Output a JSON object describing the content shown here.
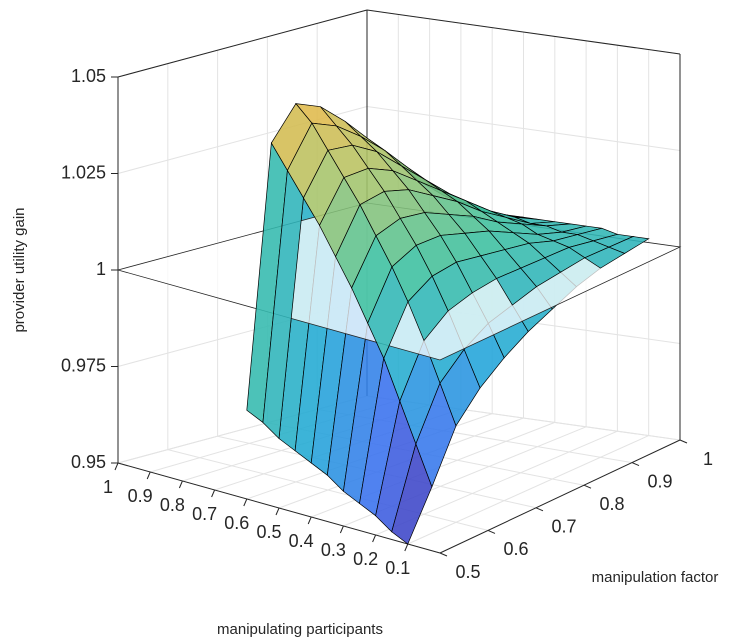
{
  "chart_data": {
    "type": "surface",
    "xlabel": "manipulating participants",
    "ylabel": "manipulation factor",
    "zlabel": "provider utility gain",
    "x": [
      0.1,
      0.15,
      0.2,
      0.25,
      0.3,
      0.35,
      0.4,
      0.45,
      0.5,
      0.55,
      0.6
    ],
    "y": [
      0.5,
      0.55,
      0.6,
      0.65,
      0.7,
      0.75,
      0.8,
      0.85,
      0.9,
      0.95,
      1
    ],
    "z": [
      [
        0.95,
        0.952,
        0.955,
        0.957,
        0.959,
        0.962,
        0.964,
        0.966,
        0.968,
        0.971,
        0.973
      ],
      [
        0.962,
        0.972,
        0.982,
        0.992,
        1.0,
        1.008,
        1.015,
        1.022,
        1.028,
        1.034,
        1.04
      ],
      [
        0.975,
        0.985,
        0.995,
        1.004,
        1.012,
        1.019,
        1.026,
        1.032,
        1.038,
        1.044,
        1.048
      ],
      [
        0.982,
        0.991,
        1.0,
        1.008,
        1.015,
        1.021,
        1.027,
        1.032,
        1.037,
        1.041,
        1.045
      ],
      [
        0.987,
        0.995,
        1.002,
        1.009,
        1.015,
        1.02,
        1.025,
        1.029,
        1.033,
        1.036,
        1.039
      ],
      [
        0.991,
        0.997,
        1.003,
        1.008,
        1.013,
        1.017,
        1.021,
        1.024,
        1.027,
        1.03,
        1.032
      ],
      [
        0.994,
        0.999,
        1.003,
        1.007,
        1.011,
        1.014,
        1.017,
        1.019,
        1.021,
        1.023,
        1.025
      ],
      [
        0.997,
        1.0,
        1.003,
        1.006,
        1.008,
        1.01,
        1.012,
        1.014,
        1.015,
        1.016,
        1.017
      ],
      [
        0.999,
        1.001,
        1.003,
        1.004,
        1.005,
        1.007,
        1.008,
        1.009,
        1.01,
        1.01,
        1.011
      ],
      [
        1.0,
        1.001,
        1.002,
        1.003,
        1.003,
        1.004,
        1.004,
        1.005,
        1.005,
        1.005,
        1.006
      ],
      [
        1.001,
        1.001,
        1.001,
        1.002,
        1.002,
        1.002,
        1.002,
        1.002,
        1.002,
        1.002,
        1.002
      ]
    ],
    "xlim": [
      0,
      1
    ],
    "ylim": [
      0.5,
      1
    ],
    "zlim": [
      0.95,
      1.05
    ],
    "xticks": [
      0.1,
      0.2,
      0.3,
      0.4,
      0.5,
      0.6,
      0.7,
      0.8,
      0.9,
      1
    ],
    "yticks": [
      0.5,
      0.6,
      0.7,
      0.8,
      0.9,
      1
    ],
    "zticks": [
      0.95,
      0.975,
      1,
      1.025,
      1.05
    ],
    "plane_z": 1,
    "grid": true,
    "colormap": [
      "#3e26a8",
      "#3a6cf0",
      "#1fa8d8",
      "#3bbf9e",
      "#a6c46a",
      "#f4b63f"
    ],
    "edge_color": "#000000"
  }
}
